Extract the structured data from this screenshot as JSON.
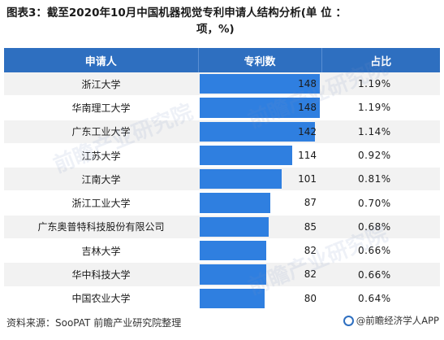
{
  "title_line1": "图表3：截至2020年10月中国机器视觉专利申请人结构分析(单 位 ：",
  "title_line2": "项，%)",
  "header": {
    "col1": "申请人",
    "col2": "专利数",
    "col3": "占比"
  },
  "chart_data": {
    "type": "table",
    "xlim": [
      0,
      150
    ],
    "rows": [
      {
        "name": "浙江大学",
        "value": 148,
        "pct": "1.19%"
      },
      {
        "name": "华南理工大学",
        "value": 148,
        "pct": "1.19%"
      },
      {
        "name": "广东工业大学",
        "value": 142,
        "pct": "1.14%"
      },
      {
        "name": "江苏大学",
        "value": 114,
        "pct": "0.92%"
      },
      {
        "name": "江南大学",
        "value": 101,
        "pct": "0.81%"
      },
      {
        "name": "浙江工业大学",
        "value": 87,
        "pct": "0.70%"
      },
      {
        "name": "广东奥普特科技股份有限公司",
        "value": 85,
        "pct": "0.68%"
      },
      {
        "name": "吉林大学",
        "value": 82,
        "pct": "0.66%"
      },
      {
        "name": "华中科技大学",
        "value": 82,
        "pct": "0.66%"
      },
      {
        "name": "中国农业大学",
        "value": 80,
        "pct": "0.64%"
      }
    ]
  },
  "colors": {
    "header_bg": "#2e6fc0",
    "bar": "#2f7fe0",
    "stripe": "#f2f2f2"
  },
  "footer": "资料来源：SooPAT  前瞻产业研究院整理",
  "brand": "@前瞻经济学人APP"
}
